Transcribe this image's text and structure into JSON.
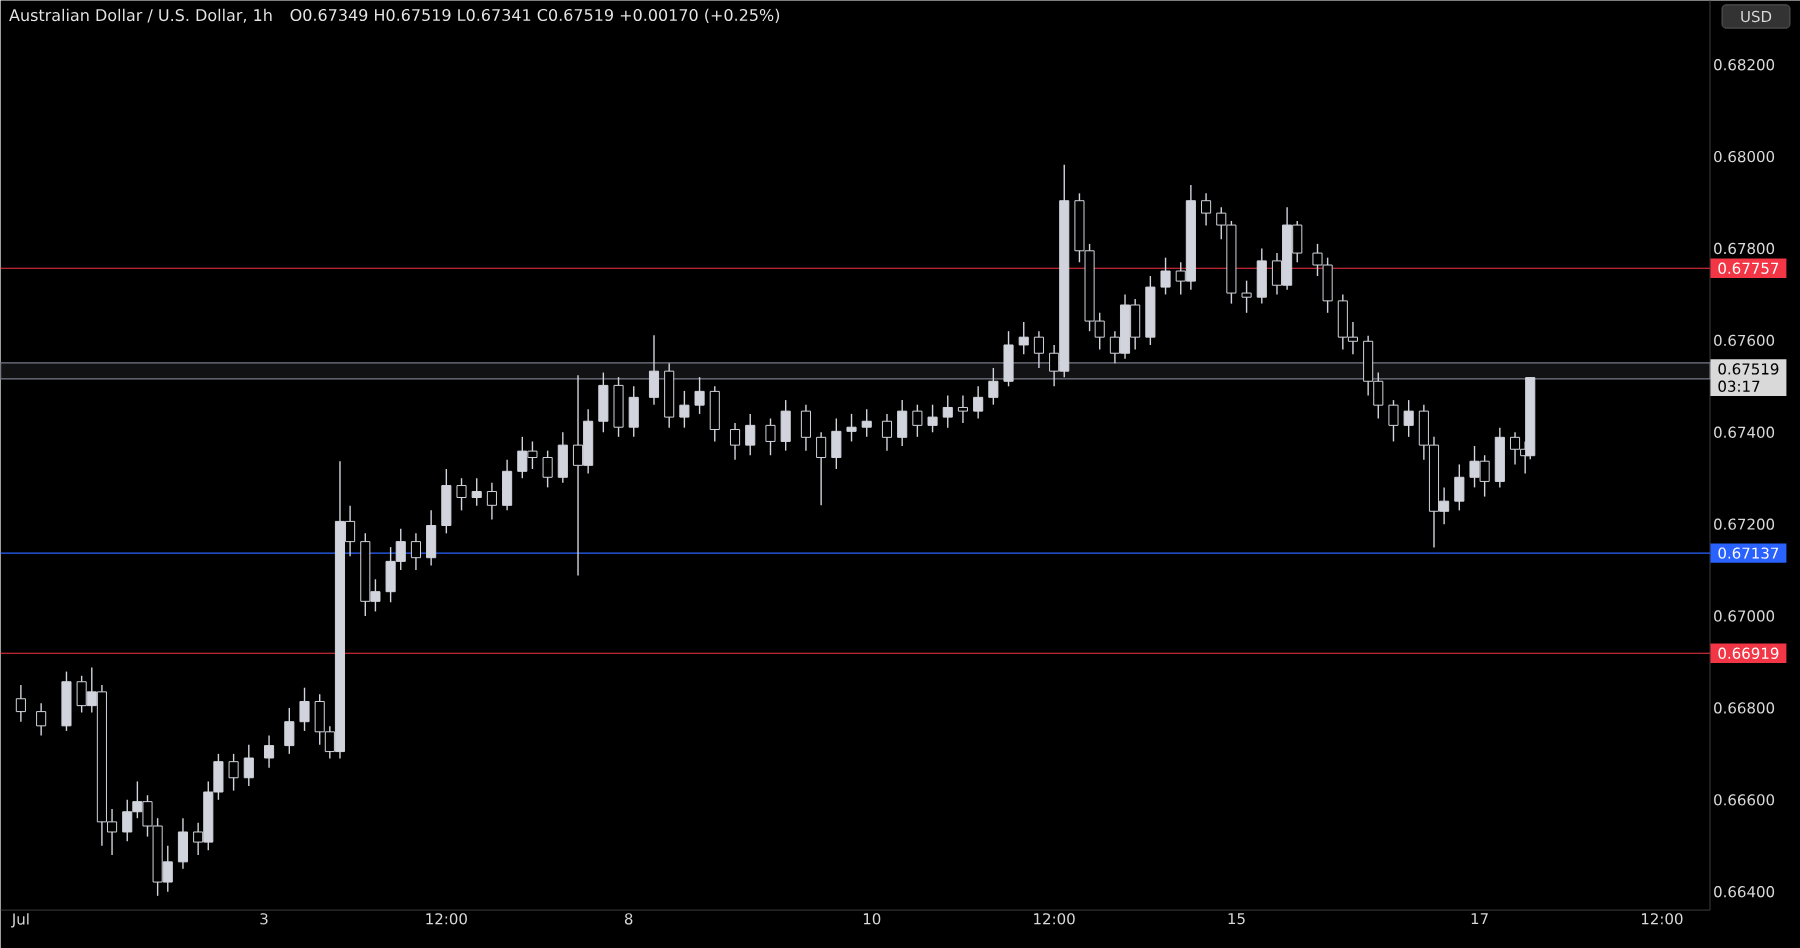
{
  "chart_data": {
    "type": "candlestick",
    "title": "Australian Dollar / U.S. Dollar, 1h",
    "subtitle": "O0.67349  H0.67519  L0.67341  C0.67519  +0.00170 (+0.25%)",
    "ylabel": "USD",
    "color": "#d1d4dc",
    "categories": [
      "Jul",
      null,
      null,
      null,
      null,
      null,
      null,
      null,
      null,
      null,
      null,
      null,
      null,
      null,
      null,
      null,
      null,
      null,
      null,
      null,
      null,
      null,
      null,
      null,
      null,
      null,
      null,
      null,
      null,
      null,
      null,
      null,
      null,
      null,
      null,
      null,
      null,
      null,
      null,
      null,
      null,
      null,
      null,
      null,
      null,
      null,
      null,
      null,
      "3",
      null,
      null,
      null,
      null,
      null,
      null,
      null,
      null,
      null,
      null,
      null,
      null,
      null,
      null,
      null,
      null,
      null,
      null,
      null,
      null,
      null,
      null,
      null,
      null,
      null,
      null,
      null,
      null,
      null,
      null,
      null,
      null,
      null,
      null,
      null,
      "12:00",
      null,
      null,
      null,
      null,
      null,
      null,
      null,
      null,
      null,
      null,
      null,
      null,
      null,
      null,
      null,
      null,
      null,
      null,
      null,
      null,
      null,
      null,
      null,
      null,
      null,
      null,
      null,
      null,
      null,
      null,
      null,
      null,
      null,
      null,
      null,
      "8",
      null,
      null,
      null,
      null,
      null,
      null,
      null,
      null,
      null,
      null,
      null,
      null,
      null,
      null,
      null,
      null,
      null,
      null,
      null,
      null,
      null,
      null,
      null,
      null,
      null,
      null,
      null,
      null,
      null,
      null,
      null,
      null,
      null,
      null,
      null,
      null,
      null,
      null,
      null,
      null,
      null,
      null,
      null,
      null,
      null,
      null,
      null,
      "10",
      null,
      null,
      null,
      null,
      null,
      null,
      null,
      null,
      null,
      null,
      null,
      null,
      null,
      null,
      null,
      null,
      null,
      null,
      null,
      null,
      null,
      null,
      null,
      null,
      null,
      null,
      null,
      null,
      null,
      null,
      null,
      null,
      null,
      null,
      null,
      "12:00",
      null,
      null,
      null,
      null,
      null,
      null,
      null,
      null,
      null,
      null,
      null,
      null,
      null,
      null,
      null,
      null,
      null,
      null,
      null,
      null,
      null,
      null,
      null,
      null,
      null,
      null,
      null,
      null,
      null,
      null,
      null,
      null,
      null,
      null,
      null,
      "15",
      null,
      null,
      null,
      null,
      null,
      null,
      null,
      null,
      null,
      null,
      null,
      null,
      null,
      null,
      null,
      null,
      null,
      null,
      null,
      null,
      null,
      null,
      null,
      null,
      null,
      null,
      null,
      null,
      null,
      null,
      null,
      null,
      null,
      null,
      null,
      null,
      null,
      null,
      null,
      null,
      null,
      null,
      null,
      null,
      null,
      null,
      null,
      "17",
      null,
      null,
      null,
      null,
      null,
      null,
      null,
      null,
      null,
      null,
      null,
      null,
      null,
      null,
      null,
      null,
      null,
      null,
      null,
      null,
      null,
      null,
      null,
      null,
      null,
      null,
      null,
      null,
      null,
      null,
      null,
      null,
      null,
      null,
      null,
      "12:00",
      null,
      null,
      null,
      null,
      null,
      null,
      null,
      null,
      null
    ],
    "ohlc": [
      [
        0.6682,
        0.6685,
        0.6677,
        0.66792
      ],
      null,
      null,
      null,
      [
        0.66792,
        0.6681,
        0.6674,
        0.66761
      ],
      null,
      null,
      null,
      null,
      [
        0.66761,
        0.66879,
        0.6675,
        0.66857
      ],
      null,
      null,
      [
        0.66857,
        0.6687,
        0.6679,
        0.66805
      ],
      null,
      [
        0.66805,
        0.66888,
        0.6679,
        0.66835
      ],
      null,
      [
        0.66835,
        0.6685,
        0.665,
        0.66552
      ],
      null,
      [
        0.66552,
        0.6658,
        0.6648,
        0.6653
      ],
      null,
      null,
      [
        0.6653,
        0.666,
        0.6651,
        0.66574
      ],
      null,
      [
        0.66574,
        0.6664,
        0.6656,
        0.66596
      ],
      null,
      [
        0.66596,
        0.6661,
        0.6652,
        0.66543
      ],
      null,
      [
        0.66543,
        0.6656,
        0.66391,
        0.66421
      ],
      null,
      [
        0.66421,
        0.665,
        0.664,
        0.66465
      ],
      null,
      null,
      [
        0.66465,
        0.6656,
        0.6645,
        0.6653
      ],
      null,
      null,
      [
        0.6653,
        0.6655,
        0.6648,
        0.66508
      ],
      null,
      [
        0.66508,
        0.6664,
        0.6649,
        0.66617
      ],
      null,
      [
        0.66617,
        0.667,
        0.666,
        0.66683
      ],
      null,
      null,
      [
        0.66683,
        0.667,
        0.6662,
        0.66648
      ],
      null,
      null,
      [
        0.66648,
        0.6672,
        0.6663,
        0.66691
      ],
      null,
      null,
      null,
      [
        0.66691,
        0.6674,
        0.6667,
        0.66718
      ],
      null,
      null,
      null,
      [
        0.66718,
        0.668,
        0.667,
        0.6677
      ],
      null,
      null,
      [
        0.6677,
        0.66844,
        0.6675,
        0.66814
      ],
      null,
      null,
      [
        0.66814,
        0.6683,
        0.6672,
        0.66748
      ],
      null,
      [
        0.66748,
        0.6676,
        0.6669,
        0.66705
      ],
      null,
      [
        0.66705,
        0.67337,
        0.6669,
        0.67206
      ],
      null,
      [
        0.67206,
        0.6724,
        0.6713,
        0.67162
      ],
      null,
      null,
      [
        0.67162,
        0.6718,
        0.67,
        0.67032
      ],
      null,
      [
        0.67032,
        0.6708,
        0.6701,
        0.67053
      ],
      null,
      null,
      [
        0.67053,
        0.6715,
        0.6703,
        0.67119
      ],
      null,
      [
        0.67119,
        0.6719,
        0.671,
        0.67162
      ],
      null,
      null,
      [
        0.67162,
        0.6718,
        0.671,
        0.67127
      ],
      null,
      null,
      [
        0.67127,
        0.6723,
        0.6711,
        0.67197
      ],
      null,
      null,
      [
        0.67197,
        0.6732,
        0.6718,
        0.67284
      ],
      null,
      null,
      [
        0.67284,
        0.673,
        0.6723,
        0.67258
      ],
      null,
      null,
      [
        0.67258,
        0.673,
        0.6724,
        0.67271
      ],
      null,
      null,
      [
        0.67271,
        0.6729,
        0.6721,
        0.67241
      ],
      null,
      null,
      [
        0.67241,
        0.6734,
        0.6723,
        0.67315
      ],
      null,
      null,
      [
        0.67315,
        0.6739,
        0.673,
        0.67359
      ],
      null,
      [
        0.67359,
        0.6738,
        0.6732,
        0.67345
      ],
      null,
      null,
      [
        0.67345,
        0.6736,
        0.6728,
        0.67302
      ],
      null,
      null,
      [
        0.67302,
        0.674,
        0.6729,
        0.67372
      ],
      null,
      null,
      [
        0.67372,
        0.67524,
        0.67088,
        0.67328
      ],
      null,
      [
        0.67328,
        0.6745,
        0.6731,
        0.67424
      ],
      null,
      null,
      [
        0.67424,
        0.6753,
        0.674,
        0.67502
      ],
      null,
      null,
      [
        0.67502,
        0.6752,
        0.6739,
        0.67411
      ],
      null,
      null,
      [
        0.67411,
        0.675,
        0.6739,
        0.67476
      ],
      null,
      null,
      null,
      [
        0.67476,
        0.67611,
        0.6746,
        0.67533
      ],
      null,
      null,
      [
        0.67533,
        0.6755,
        0.6741,
        0.67433
      ],
      null,
      null,
      [
        0.67433,
        0.6749,
        0.6741,
        0.67459
      ],
      null,
      null,
      [
        0.67459,
        0.6752,
        0.6744,
        0.67489
      ],
      null,
      null,
      [
        0.67489,
        0.675,
        0.6738,
        0.67406
      ],
      null,
      null,
      null,
      [
        0.67406,
        0.6742,
        0.6734,
        0.67372
      ],
      null,
      null,
      [
        0.67372,
        0.6744,
        0.6735,
        0.67415
      ],
      null,
      null,
      null,
      [
        0.67415,
        0.6743,
        0.6735,
        0.6738
      ],
      null,
      null,
      [
        0.6738,
        0.6747,
        0.6736,
        0.67446
      ],
      null,
      null,
      null,
      [
        0.67446,
        0.6746,
        0.6736,
        0.67389
      ],
      null,
      null,
      [
        0.67389,
        0.674,
        0.67241,
        0.67345
      ],
      null,
      null,
      [
        0.67345,
        0.6743,
        0.6732,
        0.67402
      ],
      null,
      null,
      [
        0.67402,
        0.6744,
        0.6738,
        0.67411
      ],
      null,
      null,
      [
        0.67411,
        0.6745,
        0.6739,
        0.67424
      ],
      null,
      null,
      null,
      [
        0.67424,
        0.6744,
        0.6736,
        0.67389
      ],
      null,
      null,
      [
        0.67389,
        0.6747,
        0.6737,
        0.67446
      ],
      null,
      null,
      [
        0.67446,
        0.6746,
        0.6739,
        0.67415
      ],
      null,
      null,
      [
        0.67415,
        0.6746,
        0.674,
        0.67433
      ],
      null,
      null,
      [
        0.67433,
        0.6748,
        0.6741,
        0.67454
      ],
      null,
      null,
      [
        0.67454,
        0.6748,
        0.6742,
        0.67446
      ],
      null,
      null,
      [
        0.67446,
        0.675,
        0.6743,
        0.67476
      ],
      null,
      null,
      [
        0.67476,
        0.6754,
        0.6746,
        0.67511
      ],
      null,
      null,
      [
        0.67511,
        0.6762,
        0.675,
        0.6759
      ],
      null,
      null,
      [
        0.6759,
        0.6764,
        0.6757,
        0.67607
      ],
      null,
      null,
      [
        0.67607,
        0.6762,
        0.6754,
        0.67572
      ],
      null,
      null,
      [
        0.67572,
        0.6759,
        0.675,
        0.67533
      ],
      null,
      [
        0.67533,
        0.67982,
        0.6752,
        0.67904
      ],
      null,
      null,
      [
        0.67904,
        0.6792,
        0.6777,
        0.67795
      ],
      null,
      [
        0.67795,
        0.6781,
        0.6762,
        0.67642
      ],
      null,
      [
        0.67642,
        0.6766,
        0.6758,
        0.67607
      ],
      null,
      null,
      [
        0.67607,
        0.6762,
        0.6755,
        0.67572
      ],
      null,
      [
        0.67572,
        0.677,
        0.6756,
        0.67677
      ],
      null,
      [
        0.67677,
        0.6769,
        0.6758,
        0.67607
      ],
      null,
      null,
      [
        0.67607,
        0.6774,
        0.6759,
        0.67716
      ],
      null,
      null,
      [
        0.67716,
        0.6778,
        0.677,
        0.67751
      ],
      null,
      null,
      [
        0.67751,
        0.6777,
        0.677,
        0.67729
      ],
      null,
      [
        0.67729,
        0.67938,
        0.6771,
        0.67904
      ],
      null,
      null,
      [
        0.67904,
        0.6792,
        0.6785,
        0.67877
      ],
      null,
      null,
      [
        0.67877,
        0.6789,
        0.6782,
        0.67851
      ],
      null,
      [
        0.67851,
        0.6786,
        0.6768,
        0.67703
      ],
      null,
      null,
      [
        0.67703,
        0.6773,
        0.6766,
        0.67694
      ],
      null,
      null,
      [
        0.67694,
        0.678,
        0.6768,
        0.67773
      ],
      null,
      null,
      [
        0.67773,
        0.6779,
        0.677,
        0.6772
      ],
      null,
      [
        0.6772,
        0.6789,
        0.6771,
        0.67851
      ],
      null,
      [
        0.67851,
        0.6786,
        0.6777,
        0.6779
      ],
      null,
      null,
      null,
      [
        0.6779,
        0.6781,
        0.6774,
        0.67764
      ],
      null,
      [
        0.67764,
        0.6778,
        0.6766,
        0.67686
      ],
      null,
      null,
      [
        0.67686,
        0.677,
        0.6758,
        0.67607
      ],
      null,
      [
        0.67607,
        0.6764,
        0.6757,
        0.67598
      ],
      null,
      null,
      [
        0.67598,
        0.6761,
        0.6748,
        0.67511
      ],
      null,
      [
        0.67511,
        0.6753,
        0.6743,
        0.67459
      ],
      null,
      null,
      [
        0.67459,
        0.6747,
        0.6738,
        0.67415
      ],
      null,
      null,
      [
        0.67415,
        0.6747,
        0.6739,
        0.67446
      ],
      null,
      null,
      [
        0.67446,
        0.6746,
        0.6734,
        0.67372
      ],
      null,
      [
        0.67372,
        0.6739,
        0.67149,
        0.67228
      ],
      null,
      [
        0.67228,
        0.6728,
        0.672,
        0.6725
      ],
      null,
      null,
      [
        0.6725,
        0.6733,
        0.6723,
        0.67302
      ],
      null,
      null,
      [
        0.67302,
        0.6737,
        0.6728,
        0.67337
      ],
      null,
      [
        0.67337,
        0.6735,
        0.6726,
        0.67293
      ],
      null,
      null,
      [
        0.67293,
        0.6741,
        0.6728,
        0.67389
      ],
      null,
      null,
      [
        0.67389,
        0.674,
        0.6733,
        0.67363
      ],
      null,
      [
        0.67363,
        0.6738,
        0.6731,
        0.67349
      ],
      [
        0.67349,
        0.67519,
        0.67341,
        0.67519
      ],
      null,
      null,
      null,
      null,
      null,
      null,
      null,
      null,
      null,
      null,
      null,
      null,
      null,
      null,
      null,
      null,
      null,
      null,
      null,
      null,
      null,
      null,
      null,
      null,
      null,
      null,
      null,
      null,
      null,
      null,
      null,
      null,
      null,
      null,
      null
    ],
    "ylim": [
      0.6636,
      0.6834
    ],
    "yticks": [
      {
        "value": 0.664,
        "label": "0.66400"
      },
      {
        "value": 0.666,
        "label": "0.66600"
      },
      {
        "value": 0.668,
        "label": "0.66800"
      },
      {
        "value": 0.67,
        "label": "0.67000"
      },
      {
        "value": 0.672,
        "label": "0.67200"
      },
      {
        "value": 0.674,
        "label": "0.67400"
      },
      {
        "value": 0.676,
        "label": "0.67600"
      },
      {
        "value": 0.678,
        "label": "0.67800"
      },
      {
        "value": 0.68,
        "label": "0.68000"
      },
      {
        "value": 0.682,
        "label": "0.68200"
      }
    ],
    "ref_lines": [
      {
        "axis": "y",
        "value": 0.67757,
        "label": "0.67757",
        "color": "#f23645"
      },
      {
        "axis": "y",
        "value": 0.67137,
        "label": "0.67137",
        "color": "#2962ff"
      },
      {
        "axis": "y",
        "value": 0.66919,
        "label": "0.66919",
        "color": "#f23645"
      }
    ],
    "bands": [
      {
        "axis": "y",
        "from": 0.67516,
        "to": 0.67551,
        "color": "#787b86"
      }
    ],
    "annotations": [
      "0.67519",
      "03:17"
    ]
  }
}
